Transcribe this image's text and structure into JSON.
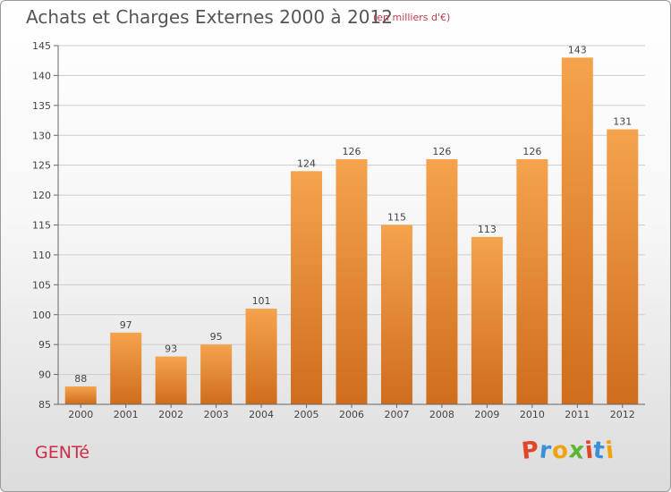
{
  "header": {
    "title": "Achats et Charges Externes 2000 à 2012",
    "unit": "(en milliers d'€)"
  },
  "footer": {
    "commune": "GENTé",
    "logo_letters": [
      "P",
      "r",
      "o",
      "x",
      "i",
      "t",
      "i"
    ]
  },
  "colors": {
    "bar_top": "#f5a34d",
    "bar_bottom": "#cf6d1c",
    "grid": "#cccccc",
    "logo": [
      "#e2462a",
      "#3a8fd6",
      "#f2a20f",
      "#5cb531",
      "#e2462a",
      "#3a8fd6",
      "#f2a20f"
    ]
  },
  "chart_data": {
    "type": "bar",
    "categories": [
      "2000",
      "2001",
      "2002",
      "2003",
      "2004",
      "2005",
      "2006",
      "2007",
      "2008",
      "2009",
      "2010",
      "2011",
      "2012"
    ],
    "values": [
      88,
      97,
      93,
      95,
      101,
      124,
      126,
      115,
      126,
      113,
      126,
      143,
      131
    ],
    "ylim": [
      85,
      145
    ],
    "yticks": [
      85,
      90,
      95,
      100,
      105,
      110,
      115,
      120,
      125,
      130,
      135,
      140,
      145
    ],
    "grid": true
  }
}
